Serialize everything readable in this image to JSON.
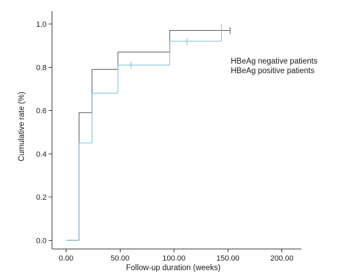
{
  "chart_data": {
    "type": "line",
    "title": "",
    "xlabel": "Follow-up duration (weeks)",
    "ylabel": "Cumulative rate (%)",
    "xlim": [
      -13,
      218
    ],
    "ylim": [
      -0.04,
      1.06
    ],
    "x_ticks": [
      0,
      50,
      100,
      150,
      200
    ],
    "x_tick_labels": [
      "0.00",
      "50.00",
      "100.00",
      "150.00",
      "200.00"
    ],
    "y_ticks": [
      0.0,
      0.2,
      0.4,
      0.6,
      0.8,
      1.0
    ],
    "y_tick_labels": [
      "0.0",
      "0.2",
      "0.4",
      "0.6",
      "0.8",
      "1.0"
    ],
    "grid": false,
    "legend_position": "right",
    "step": true,
    "series": [
      {
        "name": "HBeAg negative patients",
        "color": "#555555",
        "x": [
          0,
          12,
          24,
          48,
          96,
          144,
          152
        ],
        "y": [
          0,
          0.59,
          0.79,
          0.87,
          0.97,
          0.97,
          0.97
        ],
        "censored": [
          {
            "x": 152,
            "y": 0.97
          }
        ]
      },
      {
        "name": "HBeAg positive patients",
        "color": "#6ec3d6",
        "x": [
          0,
          12,
          24,
          48,
          96,
          144
        ],
        "y": [
          0,
          0.45,
          0.68,
          0.81,
          0.92,
          1.0
        ],
        "censored": [
          {
            "x": 60,
            "y": 0.81
          },
          {
            "x": 112,
            "y": 0.92
          }
        ]
      }
    ]
  }
}
